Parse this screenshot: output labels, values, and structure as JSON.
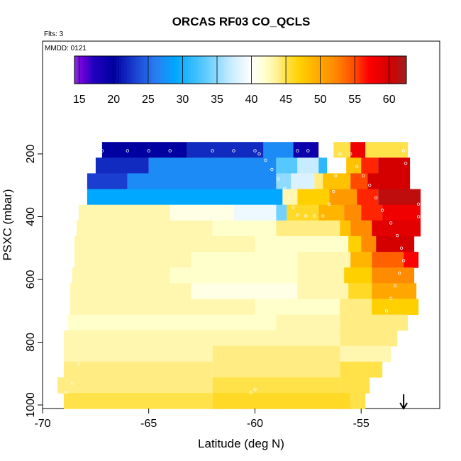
{
  "chart_data": {
    "type": "heatmap",
    "title": "ORCAS RF03 CO_QCLS",
    "annotations": {
      "flights": "Flts: 3",
      "date": "MMDD: 0121"
    },
    "xlabel": "Latitude (deg N)",
    "ylabel": "PSXC (mbar)",
    "xlim": [
      -70,
      -51.3
    ],
    "ylim": [
      1010,
      100
    ],
    "y_reversed": true,
    "x_ticks": [
      -70,
      -65,
      -60,
      -55
    ],
    "y_ticks": [
      200,
      400,
      600,
      800,
      1000
    ],
    "colorbar": {
      "min": 14.3,
      "max": 62.5,
      "ticks": [
        15,
        20,
        25,
        30,
        35,
        40,
        45,
        50,
        55,
        60
      ]
    },
    "pressure_levels": [
      187,
      237,
      287,
      337,
      387,
      437,
      487,
      537,
      587,
      637,
      687,
      737,
      787,
      837,
      887,
      937,
      987
    ],
    "rows": [
      {
        "p": 187,
        "segments": [
          [
            -67.2,
            -63.2,
            20
          ],
          [
            -63.2,
            -59.6,
            22
          ],
          [
            -59.6,
            -58.2,
            27
          ],
          [
            -58.2,
            -57.0,
            19
          ],
          [
            -57.0,
            -56.3,
            40
          ],
          [
            -56.3,
            -55.5,
            45
          ],
          [
            -55.5,
            -54.8,
            58
          ],
          [
            -54.8,
            -52.8,
            45
          ]
        ]
      },
      {
        "p": 237,
        "segments": [
          [
            -67.5,
            -65.0,
            22
          ],
          [
            -65.0,
            -59.0,
            27
          ],
          [
            -59.0,
            -58.0,
            33
          ],
          [
            -58.0,
            -57.0,
            37
          ],
          [
            -57.0,
            -56.6,
            31
          ],
          [
            -56.6,
            -55.7,
            40
          ],
          [
            -55.7,
            -55.0,
            48
          ],
          [
            -55.0,
            -54.2,
            56
          ],
          [
            -54.2,
            -52.7,
            60
          ]
        ]
      },
      {
        "p": 287,
        "segments": [
          [
            -67.9,
            -66.0,
            23
          ],
          [
            -66.0,
            -59.0,
            27
          ],
          [
            -59.0,
            -58.3,
            35
          ],
          [
            -58.3,
            -57.2,
            38
          ],
          [
            -57.2,
            -56.8,
            44
          ],
          [
            -56.8,
            -55.5,
            48
          ],
          [
            -55.5,
            -54.7,
            55
          ],
          [
            -54.7,
            -52.7,
            60
          ]
        ]
      },
      {
        "p": 337,
        "segments": [
          [
            -67.9,
            -58.7,
            29
          ],
          [
            -58.7,
            -58.0,
            43
          ],
          [
            -58.0,
            -56.5,
            47
          ],
          [
            -56.5,
            -55.2,
            51
          ],
          [
            -55.2,
            -54.2,
            56
          ],
          [
            -54.2,
            -52.2,
            61
          ]
        ]
      },
      {
        "p": 387,
        "segments": [
          [
            -68.3,
            -64.0,
            43
          ],
          [
            -64.0,
            -61.0,
            41
          ],
          [
            -61.0,
            -59.0,
            39
          ],
          [
            -59.0,
            -58.5,
            34
          ],
          [
            -58.5,
            -57.0,
            46
          ],
          [
            -57.0,
            -55.8,
            49
          ],
          [
            -55.8,
            -55.0,
            52
          ],
          [
            -55.0,
            -54.0,
            56
          ],
          [
            -54.0,
            -52.2,
            58
          ]
        ]
      },
      {
        "p": 437,
        "segments": [
          [
            -68.4,
            -62.0,
            43
          ],
          [
            -62.0,
            -59.0,
            42
          ],
          [
            -59.0,
            -56.0,
            44
          ],
          [
            -56.0,
            -55.5,
            48
          ],
          [
            -55.5,
            -54.5,
            52
          ],
          [
            -54.5,
            -52.2,
            59
          ]
        ]
      },
      {
        "p": 487,
        "segments": [
          [
            -68.5,
            -60.0,
            43
          ],
          [
            -60.0,
            -55.6,
            42
          ],
          [
            -55.6,
            -55.0,
            47
          ],
          [
            -55.0,
            -54.3,
            52
          ],
          [
            -54.3,
            -52.5,
            60
          ]
        ]
      },
      {
        "p": 537,
        "segments": [
          [
            -68.5,
            -63.0,
            43
          ],
          [
            -63.0,
            -58.0,
            42
          ],
          [
            -58.0,
            -55.5,
            43
          ],
          [
            -55.5,
            -54.5,
            49
          ],
          [
            -54.5,
            -53.0,
            54
          ],
          [
            -53.0,
            -52.3,
            57
          ]
        ]
      },
      {
        "p": 587,
        "segments": [
          [
            -68.6,
            -64.0,
            43
          ],
          [
            -64.0,
            -58.0,
            42
          ],
          [
            -58.0,
            -55.8,
            43
          ],
          [
            -55.8,
            -54.5,
            47
          ],
          [
            -54.5,
            -52.5,
            52
          ]
        ]
      },
      {
        "p": 637,
        "segments": [
          [
            -68.7,
            -63.0,
            43
          ],
          [
            -63.0,
            -58.0,
            41
          ],
          [
            -58.0,
            -55.6,
            43
          ],
          [
            -55.6,
            -54.5,
            46
          ],
          [
            -54.5,
            -52.4,
            50
          ]
        ]
      },
      {
        "p": 687,
        "segments": [
          [
            -68.7,
            -60.0,
            43
          ],
          [
            -60.0,
            -56.0,
            42
          ],
          [
            -56.0,
            -54.5,
            44
          ],
          [
            -54.5,
            -52.3,
            47
          ]
        ]
      },
      {
        "p": 737,
        "segments": [
          [
            -68.8,
            -59.0,
            42
          ],
          [
            -59.0,
            -56.0,
            43
          ],
          [
            -56.0,
            -52.8,
            44
          ]
        ]
      },
      {
        "p": 787,
        "segments": [
          [
            -69.0,
            -56.0,
            43
          ],
          [
            -56.0,
            -53.3,
            44
          ]
        ]
      },
      {
        "p": 837,
        "segments": [
          [
            -69.0,
            -62.0,
            43
          ],
          [
            -62.0,
            -56.0,
            44
          ],
          [
            -56.0,
            -53.6,
            43
          ]
        ]
      },
      {
        "p": 887,
        "segments": [
          [
            -69.0,
            -62.0,
            44
          ],
          [
            -62.0,
            -56.0,
            44
          ],
          [
            -56.0,
            -54.0,
            45
          ]
        ]
      },
      {
        "p": 937,
        "segments": [
          [
            -69.3,
            -62.0,
            44
          ],
          [
            -62.0,
            -56.0,
            45
          ],
          [
            -56.0,
            -54.6,
            45
          ]
        ]
      },
      {
        "p": 987,
        "segments": [
          [
            -69.0,
            -62.0,
            45
          ],
          [
            -62.0,
            -55.5,
            46
          ],
          [
            -55.5,
            -54.8,
            45
          ]
        ]
      }
    ],
    "flight_track": [
      [
        -67.2,
        190
      ],
      [
        -66.0,
        190
      ],
      [
        -65.0,
        190
      ],
      [
        -64.0,
        190
      ],
      [
        -62.0,
        190
      ],
      [
        -61.0,
        190
      ],
      [
        -60.0,
        190
      ],
      [
        -59.8,
        200
      ],
      [
        -59.5,
        220
      ],
      [
        -59.2,
        250
      ],
      [
        -58.9,
        280
      ],
      [
        -58.6,
        310
      ],
      [
        -58.4,
        340
      ],
      [
        -58.2,
        370
      ],
      [
        -58.0,
        395
      ],
      [
        -57.6,
        398
      ],
      [
        -57.2,
        398
      ],
      [
        -56.8,
        398
      ],
      [
        -56.5,
        360
      ],
      [
        -56.3,
        320
      ],
      [
        -56.2,
        270
      ],
      [
        -56.1,
        230
      ],
      [
        -56.0,
        200
      ],
      [
        -58.0,
        190
      ],
      [
        -57.5,
        190
      ],
      [
        -55.5,
        200
      ],
      [
        -55.2,
        240
      ],
      [
        -54.9,
        270
      ],
      [
        -54.6,
        300
      ],
      [
        -54.3,
        340
      ],
      [
        -54.0,
        380
      ],
      [
        -53.6,
        420
      ],
      [
        -53.3,
        460
      ],
      [
        -53.1,
        500
      ],
      [
        -53.0,
        540
      ],
      [
        -53.2,
        580
      ],
      [
        -53.4,
        620
      ],
      [
        -53.6,
        660
      ],
      [
        -53.8,
        700
      ],
      [
        -53.0,
        190
      ],
      [
        -52.9,
        230
      ],
      [
        -52.6,
        300
      ],
      [
        -52.3,
        360
      ],
      [
        -52.3,
        400
      ],
      [
        -67.8,
        230
      ],
      [
        -68.0,
        280
      ],
      [
        -68.2,
        330
      ],
      [
        -68.3,
        870
      ],
      [
        -68.6,
        930
      ],
      [
        -68.9,
        960
      ],
      [
        -60.2,
        960
      ],
      [
        -60.0,
        950
      ]
    ],
    "marker": {
      "x": -53.0,
      "label": "arrow"
    }
  }
}
